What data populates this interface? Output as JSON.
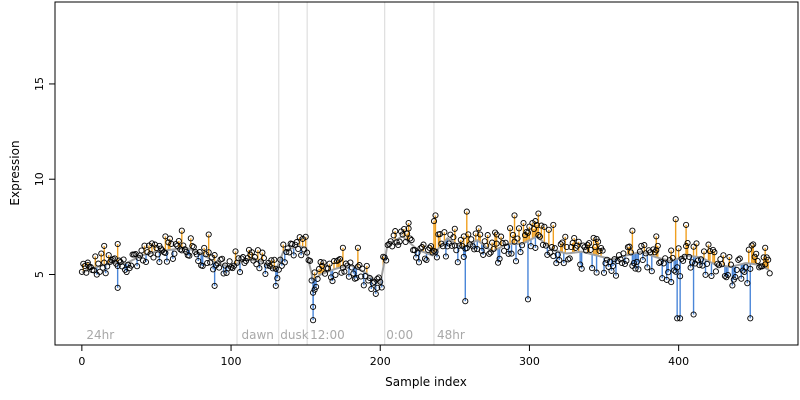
{
  "chart_data": {
    "type": "scatter",
    "title": "",
    "xlabel": "Sample index",
    "ylabel": "Expression",
    "xlim": [
      -18,
      480
    ],
    "ylim": [
      1.3,
      19.3
    ],
    "xticks": [
      0,
      100,
      200,
      300,
      400
    ],
    "yticks": [
      5,
      10,
      15
    ],
    "grid": false,
    "colors": {
      "points": "#000000",
      "fit_line": "#a0a0a0",
      "residual_above": "#f0a020",
      "residual_below": "#4a86d8",
      "separators": "#d8d8d8",
      "segment_labels": "#a8a8a8"
    },
    "segment_separators": [
      104,
      132,
      151,
      203,
      236
    ],
    "segment_labels": [
      {
        "x": 3,
        "text": "24hr"
      },
      {
        "x": 107,
        "text": "dawn"
      },
      {
        "x": 133,
        "text": "dusk"
      },
      {
        "x": 153,
        "text": "12:00"
      },
      {
        "x": 204,
        "text": "0:00"
      },
      {
        "x": 238,
        "text": "48hr"
      }
    ],
    "keypoints": [
      [
        0,
        5.1
      ],
      [
        10,
        5.4
      ],
      [
        20,
        5.6
      ],
      [
        30,
        5.6
      ],
      [
        40,
        6.0
      ],
      [
        50,
        6.2
      ],
      [
        60,
        6.3
      ],
      [
        70,
        6.4
      ],
      [
        80,
        6.1
      ],
      [
        90,
        5.6
      ],
      [
        100,
        5.4
      ],
      [
        110,
        5.8
      ],
      [
        120,
        5.7
      ],
      [
        130,
        5.2
      ],
      [
        135,
        6.2
      ],
      [
        145,
        6.5
      ],
      [
        150,
        6.4
      ],
      [
        155,
        4.7
      ],
      [
        160,
        5.0
      ],
      [
        170,
        5.3
      ],
      [
        180,
        5.5
      ],
      [
        190,
        5.1
      ],
      [
        200,
        4.5
      ],
      [
        205,
        6.6
      ],
      [
        215,
        7.0
      ],
      [
        225,
        6.3
      ],
      [
        235,
        6.0
      ],
      [
        245,
        6.9
      ],
      [
        255,
        6.4
      ],
      [
        265,
        6.8
      ],
      [
        275,
        6.2
      ],
      [
        285,
        6.6
      ],
      [
        295,
        6.6
      ],
      [
        305,
        7.0
      ],
      [
        315,
        6.3
      ],
      [
        325,
        6.1
      ],
      [
        335,
        6.2
      ],
      [
        345,
        6.0
      ],
      [
        355,
        5.8
      ],
      [
        365,
        6.0
      ],
      [
        375,
        6.2
      ],
      [
        385,
        5.9
      ],
      [
        395,
        5.7
      ],
      [
        405,
        6.0
      ],
      [
        415,
        5.9
      ],
      [
        425,
        5.5
      ],
      [
        435,
        5.4
      ],
      [
        445,
        5.6
      ],
      [
        455,
        5.5
      ],
      [
        461,
        5.2
      ]
    ],
    "outliers": [
      [
        4,
        5.5
      ],
      [
        15,
        6.5
      ],
      [
        24,
        4.3
      ],
      [
        24,
        6.6
      ],
      [
        52,
        6.5
      ],
      [
        56,
        7.0
      ],
      [
        67,
        7.3
      ],
      [
        85,
        7.1
      ],
      [
        89,
        4.4
      ],
      [
        130,
        4.4
      ],
      [
        155,
        2.6
      ],
      [
        155,
        3.3
      ],
      [
        156,
        4.2
      ],
      [
        175,
        6.4
      ],
      [
        185,
        6.4
      ],
      [
        198,
        4.3
      ],
      [
        219,
        7.7
      ],
      [
        236,
        7.8
      ],
      [
        237,
        8.1
      ],
      [
        250,
        7.4
      ],
      [
        256,
        7.0
      ],
      [
        257,
        3.6
      ],
      [
        258,
        8.3
      ],
      [
        278,
        7.1
      ],
      [
        290,
        8.1
      ],
      [
        299,
        3.7
      ],
      [
        304,
        7.8
      ],
      [
        306,
        8.2
      ],
      [
        316,
        7.6
      ],
      [
        345,
        5.1
      ],
      [
        369,
        7.3
      ],
      [
        385,
        7.0
      ],
      [
        395,
        4.6
      ],
      [
        398,
        7.9
      ],
      [
        399,
        2.7
      ],
      [
        401,
        2.7
      ],
      [
        405,
        7.6
      ],
      [
        410,
        2.9
      ],
      [
        448,
        2.7
      ],
      [
        458,
        6.4
      ]
    ]
  }
}
